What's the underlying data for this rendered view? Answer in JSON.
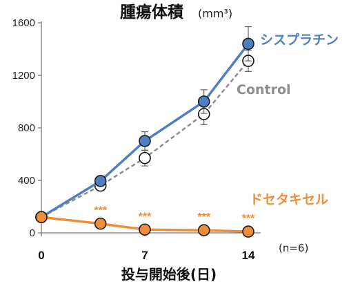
{
  "title": {
    "main": "腫瘍体積",
    "unit": "(mm³)"
  },
  "note": "(n=6)",
  "chart_data": {
    "type": "line",
    "title": "腫瘍体積 (mm³)",
    "xlabel": "投与開始後(日)",
    "ylabel": "",
    "xlim": [
      0,
      14
    ],
    "ylim": [
      0,
      1600
    ],
    "x_ticks": [
      "0",
      "7",
      "14"
    ],
    "x_tick_values": [
      0,
      7,
      14
    ],
    "y_ticks": [
      "0",
      "400",
      "800",
      "1200",
      "1600"
    ],
    "y_tick_values": [
      0,
      400,
      800,
      1200,
      1600
    ],
    "grid": false,
    "series": [
      {
        "name": "Control",
        "color": "#8c8c8c",
        "line_style": "dashed",
        "marker": "open-circle",
        "x": [
          0,
          4,
          7,
          11,
          14
        ],
        "y": [
          120,
          360,
          570,
          905,
          1310
        ],
        "error": [
          0,
          20,
          60,
          80,
          80
        ]
      },
      {
        "name": "シスプラチン",
        "color": "#4f7fbf",
        "line_style": "solid",
        "marker": "filled-circle",
        "x": [
          0,
          4,
          7,
          11,
          14
        ],
        "y": [
          120,
          395,
          700,
          1000,
          1440
        ],
        "error": [
          0,
          20,
          70,
          90,
          130
        ]
      },
      {
        "name": "ドセタキセル",
        "color": "#ee8d3a",
        "line_style": "solid",
        "marker": "filled-circle",
        "x": [
          0,
          4,
          7,
          11,
          14
        ],
        "y": [
          120,
          70,
          25,
          20,
          10
        ],
        "error": [
          0,
          10,
          10,
          5,
          5
        ],
        "annotations": [
          "",
          "***",
          "***",
          "***",
          "***"
        ]
      }
    ]
  }
}
